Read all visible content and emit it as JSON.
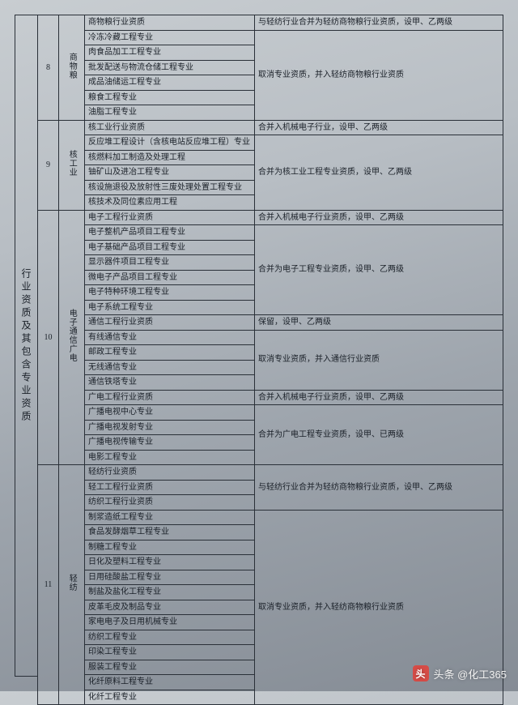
{
  "sidebar_label": "行业资质及其包含专业资质",
  "watermark": {
    "icon": "头",
    "text": "头条 @化工365"
  },
  "groups": [
    {
      "num": "8",
      "cat": "商物粮",
      "rows": [
        {
          "item": "商物粮行业资质",
          "note": "与轻纺行业合并为轻纺商物粮行业资质，设甲、乙两级"
        },
        {
          "item": "冷冻冷藏工程专业",
          "note": "取消专业资质，并入轻纺商物粮行业资质",
          "notespan": 6
        },
        {
          "item": "肉食品加工工程专业"
        },
        {
          "item": "批发配送与物流仓储工程专业"
        },
        {
          "item": "成品油储运工程专业"
        },
        {
          "item": "粮食工程专业"
        },
        {
          "item": "油脂工程专业"
        }
      ]
    },
    {
      "num": "9",
      "cat": "核工业",
      "rows": [
        {
          "item": "核工业行业资质",
          "note": "合并入机械电子行业，设甲、乙两级"
        },
        {
          "item": "反应堆工程设计（含核电站反应堆工程）专业",
          "note": "合并为核工业工程专业资质，设甲、乙两级",
          "notespan": 5
        },
        {
          "item": "核燃料加工制造及处理工程"
        },
        {
          "item": "铀矿山及进冶工程专业"
        },
        {
          "item": "核设施退役及放射性三废处理处置工程专业"
        },
        {
          "item": "核技术及同位素应用工程"
        }
      ]
    },
    {
      "num": "10",
      "cat": "电子通信广电",
      "rows": [
        {
          "item": "电子工程行业资质",
          "note": "合并入机械电子行业资质，设甲、乙两级"
        },
        {
          "item": "电子整机产品项目工程专业",
          "note": "合并为电子工程专业资质，设甲、乙两级",
          "notespan": 6
        },
        {
          "item": "电子基础产品项目工程专业"
        },
        {
          "item": "显示器件项目工程专业"
        },
        {
          "item": "微电子产品项目工程专业"
        },
        {
          "item": "电子特种环境工程专业"
        },
        {
          "item": "电子系统工程专业"
        },
        {
          "item": "通信工程行业资质",
          "note": "保留，设甲、乙两级"
        },
        {
          "item": "有线通信专业",
          "note": "取消专业资质，并入通信行业资质",
          "notespan": 4
        },
        {
          "item": "邮政工程专业"
        },
        {
          "item": "无线通信专业"
        },
        {
          "item": "通信铁塔专业"
        },
        {
          "item": "广电工程行业资质",
          "note": "合并入机械电子行业资质，设甲、乙两级"
        },
        {
          "item": "广播电视中心专业",
          "note": "合并为广电工程专业资质，设甲、已两级",
          "notespan": 4
        },
        {
          "item": "广播电视发射专业"
        },
        {
          "item": "广播电视传输专业"
        },
        {
          "item": "电影工程专业"
        }
      ]
    },
    {
      "num": "11",
      "cat": "轻纺",
      "rows": [
        {
          "item": "轻纺行业资质",
          "note": "与轻纺行业合并为轻纺商物粮行业资质，设甲、乙两级",
          "notespan": 3
        },
        {
          "item": "轻工工程行业资质"
        },
        {
          "item": "纺织工程行业资质"
        },
        {
          "item": "制浆造纸工程专业",
          "note": "取消专业资质，并入轻纺商物粮行业资质",
          "notespan": 13
        },
        {
          "item": "食品发酵烟草工程专业"
        },
        {
          "item": "制糖工程专业"
        },
        {
          "item": "日化及塑料工程专业"
        },
        {
          "item": "日用硅酸盐工程专业"
        },
        {
          "item": "制盐及盐化工程专业"
        },
        {
          "item": "皮革毛皮及制品专业"
        },
        {
          "item": "家电电子及日用机械专业"
        },
        {
          "item": "纺织工程专业"
        },
        {
          "item": "印染工程专业"
        },
        {
          "item": "服装工程专业"
        },
        {
          "item": "化纤原料工程专业"
        },
        {
          "item": "化纤工程专业"
        }
      ]
    }
  ]
}
